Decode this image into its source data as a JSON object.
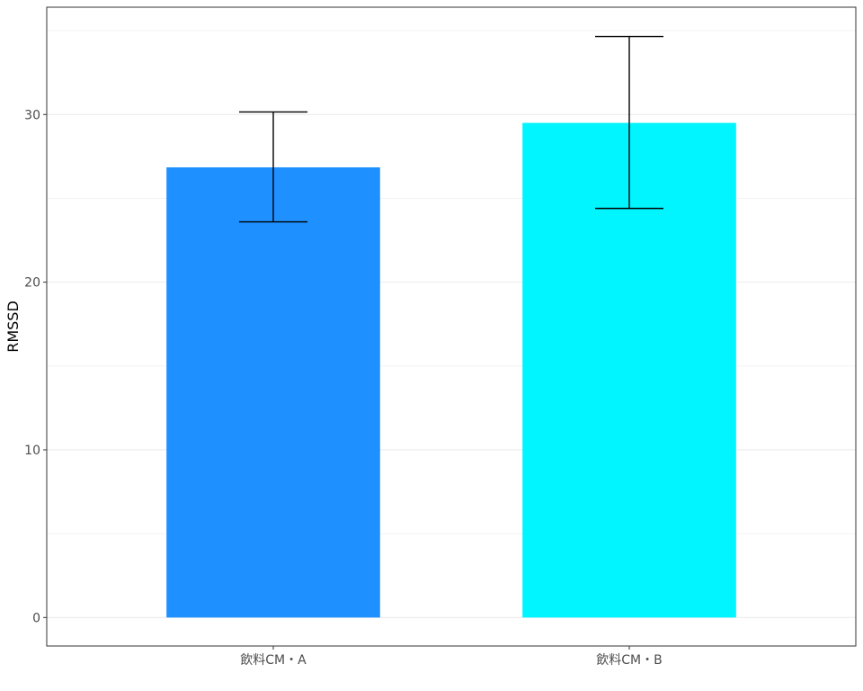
{
  "chart_data": {
    "type": "bar",
    "title": "",
    "xlabel": "",
    "ylabel": "RMSSD",
    "categories": [
      "飲料CM・A",
      "飲料CM・B"
    ],
    "values": [
      26.85,
      29.5
    ],
    "error_bars": [
      {
        "lower": 23.6,
        "upper": 30.15
      },
      {
        "lower": 24.4,
        "upper": 34.65
      }
    ],
    "colors": [
      "#1E90FF",
      "#00F5FF"
    ],
    "error_bar_color": "#000000",
    "ylim": [
      -1.7,
      36.4
    ],
    "yticks": [
      0,
      10,
      20,
      30
    ],
    "y_minor_gridlines": [
      5,
      15,
      25,
      35
    ],
    "grid": true,
    "legend": "none"
  }
}
